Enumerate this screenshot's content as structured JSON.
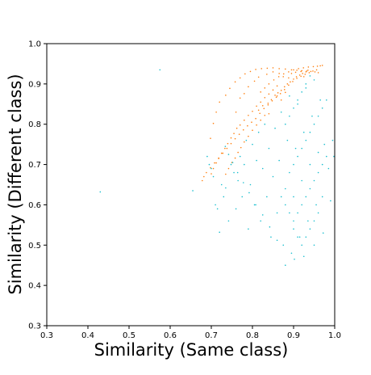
{
  "chart_data": {
    "type": "scatter",
    "xlabel": "Similarity (Same class)",
    "ylabel": "Similarity (Different class)",
    "xlim": [
      0.3,
      1.0
    ],
    "ylim": [
      0.3,
      1.0
    ],
    "x_ticks": [
      "0.3",
      "0.4",
      "0.5",
      "0.6",
      "0.7",
      "0.8",
      "0.9",
      "1.0"
    ],
    "y_ticks": [
      "0.3",
      "0.4",
      "0.5",
      "0.6",
      "0.7",
      "0.8",
      "0.9",
      "1.0"
    ],
    "grid": false,
    "legend": "none",
    "series": [
      {
        "color": "#ff7f0e",
        "points": [
          [
            0.815,
            0.835
          ],
          [
            0.825,
            0.846
          ],
          [
            0.838,
            0.852
          ],
          [
            0.846,
            0.861
          ],
          [
            0.855,
            0.872
          ],
          [
            0.862,
            0.878
          ],
          [
            0.87,
            0.884
          ],
          [
            0.878,
            0.893
          ],
          [
            0.885,
            0.9
          ],
          [
            0.892,
            0.905
          ],
          [
            0.9,
            0.912
          ],
          [
            0.907,
            0.918
          ],
          [
            0.915,
            0.922
          ],
          [
            0.922,
            0.926
          ],
          [
            0.93,
            0.93
          ],
          [
            0.935,
            0.934
          ],
          [
            0.86,
            0.87
          ],
          [
            0.87,
            0.86
          ],
          [
            0.88,
            0.879
          ],
          [
            0.84,
            0.826
          ],
          [
            0.83,
            0.822
          ],
          [
            0.82,
            0.81
          ],
          [
            0.81,
            0.798
          ],
          [
            0.8,
            0.785
          ],
          [
            0.79,
            0.77
          ],
          [
            0.78,
            0.756
          ],
          [
            0.772,
            0.742
          ],
          [
            0.765,
            0.73
          ],
          [
            0.758,
            0.716
          ],
          [
            0.75,
            0.705
          ],
          [
            0.742,
            0.69
          ],
          [
            0.735,
            0.676
          ],
          [
            0.76,
            0.83
          ],
          [
            0.77,
            0.865
          ],
          [
            0.78,
            0.876
          ],
          [
            0.79,
            0.893
          ],
          [
            0.805,
            0.907
          ],
          [
            0.815,
            0.917
          ],
          [
            0.835,
            0.924
          ],
          [
            0.85,
            0.93
          ],
          [
            0.865,
            0.926
          ],
          [
            0.875,
            0.918
          ],
          [
            0.888,
            0.915
          ],
          [
            0.895,
            0.926
          ],
          [
            0.905,
            0.929
          ],
          [
            0.918,
            0.931
          ],
          [
            0.925,
            0.918
          ],
          [
            0.86,
            0.895
          ],
          [
            0.85,
            0.885
          ],
          [
            0.84,
            0.875
          ],
          [
            0.83,
            0.866
          ],
          [
            0.82,
            0.855
          ],
          [
            0.81,
            0.845
          ],
          [
            0.8,
            0.832
          ],
          [
            0.79,
            0.822
          ],
          [
            0.78,
            0.81
          ],
          [
            0.77,
            0.798
          ],
          [
            0.762,
            0.79
          ],
          [
            0.755,
            0.777
          ],
          [
            0.748,
            0.766
          ],
          [
            0.74,
            0.752
          ],
          [
            0.733,
            0.74
          ],
          [
            0.725,
            0.728
          ],
          [
            0.718,
            0.715
          ],
          [
            0.712,
            0.704
          ],
          [
            0.705,
            0.69
          ],
          [
            0.7,
            0.677
          ],
          [
            0.698,
            0.765
          ],
          [
            0.705,
            0.802
          ],
          [
            0.712,
            0.83
          ],
          [
            0.72,
            0.855
          ],
          [
            0.735,
            0.872
          ],
          [
            0.745,
            0.889
          ],
          [
            0.758,
            0.905
          ],
          [
            0.77,
            0.915
          ],
          [
            0.782,
            0.925
          ],
          [
            0.795,
            0.931
          ],
          [
            0.808,
            0.936
          ],
          [
            0.822,
            0.938
          ],
          [
            0.836,
            0.939
          ],
          [
            0.85,
            0.94
          ],
          [
            0.865,
            0.938
          ],
          [
            0.88,
            0.937
          ],
          [
            0.895,
            0.935
          ],
          [
            0.908,
            0.934
          ],
          [
            0.92,
            0.933
          ],
          [
            0.932,
            0.932
          ],
          [
            0.942,
            0.931
          ],
          [
            0.952,
            0.93
          ],
          [
            0.96,
            0.928
          ],
          [
            0.808,
            0.814
          ],
          [
            0.818,
            0.827
          ],
          [
            0.828,
            0.839
          ],
          [
            0.838,
            0.848
          ],
          [
            0.848,
            0.858
          ],
          [
            0.858,
            0.867
          ],
          [
            0.868,
            0.876
          ],
          [
            0.878,
            0.886
          ],
          [
            0.888,
            0.897
          ],
          [
            0.898,
            0.906
          ],
          [
            0.908,
            0.914
          ],
          [
            0.918,
            0.919
          ],
          [
            0.928,
            0.924
          ],
          [
            0.938,
            0.928
          ],
          [
            0.947,
            0.932
          ],
          [
            0.956,
            0.935
          ],
          [
            0.798,
            0.805
          ],
          [
            0.788,
            0.796
          ],
          [
            0.778,
            0.786
          ],
          [
            0.768,
            0.775
          ],
          [
            0.758,
            0.764
          ],
          [
            0.748,
            0.752
          ],
          [
            0.738,
            0.74
          ],
          [
            0.728,
            0.728
          ],
          [
            0.718,
            0.716
          ],
          [
            0.708,
            0.704
          ],
          [
            0.698,
            0.692
          ],
          [
            0.688,
            0.68
          ],
          [
            0.682,
            0.67
          ],
          [
            0.678,
            0.66
          ],
          [
            0.82,
            0.88
          ],
          [
            0.83,
            0.89
          ],
          [
            0.84,
            0.9
          ],
          [
            0.852,
            0.91
          ],
          [
            0.864,
            0.918
          ],
          [
            0.876,
            0.925
          ],
          [
            0.888,
            0.93
          ],
          [
            0.9,
            0.935
          ],
          [
            0.912,
            0.938
          ],
          [
            0.924,
            0.94
          ],
          [
            0.936,
            0.942
          ],
          [
            0.948,
            0.943
          ],
          [
            0.958,
            0.944
          ],
          [
            0.965,
            0.945
          ],
          [
            0.97,
            0.946
          ]
        ]
      },
      {
        "color": "#17becf",
        "points": [
          [
            0.43,
            0.632
          ],
          [
            0.575,
            0.935
          ],
          [
            0.655,
            0.635
          ],
          [
            0.69,
            0.72
          ],
          [
            0.695,
            0.7
          ],
          [
            0.7,
            0.69
          ],
          [
            0.705,
            0.67
          ],
          [
            0.71,
            0.6
          ],
          [
            0.715,
            0.59
          ],
          [
            0.72,
            0.532
          ],
          [
            0.725,
            0.65
          ],
          [
            0.73,
            0.62
          ],
          [
            0.735,
            0.642
          ],
          [
            0.742,
            0.56
          ],
          [
            0.748,
            0.7
          ],
          [
            0.755,
            0.68
          ],
          [
            0.76,
            0.59
          ],
          [
            0.765,
            0.66
          ],
          [
            0.77,
            0.72
          ],
          [
            0.775,
            0.62
          ],
          [
            0.78,
            0.7
          ],
          [
            0.785,
            0.76
          ],
          [
            0.79,
            0.54
          ],
          [
            0.795,
            0.65
          ],
          [
            0.8,
            0.75
          ],
          [
            0.805,
            0.6
          ],
          [
            0.81,
            0.71
          ],
          [
            0.815,
            0.78
          ],
          [
            0.82,
            0.56
          ],
          [
            0.825,
            0.69
          ],
          [
            0.83,
            0.8
          ],
          [
            0.835,
            0.62
          ],
          [
            0.84,
            0.74
          ],
          [
            0.845,
            0.52
          ],
          [
            0.85,
            0.67
          ],
          [
            0.855,
            0.79
          ],
          [
            0.86,
            0.58
          ],
          [
            0.865,
            0.71
          ],
          [
            0.87,
            0.83
          ],
          [
            0.875,
            0.5
          ],
          [
            0.88,
            0.64
          ],
          [
            0.885,
            0.76
          ],
          [
            0.89,
            0.87
          ],
          [
            0.895,
            0.48
          ],
          [
            0.9,
            0.62
          ],
          [
            0.905,
            0.74
          ],
          [
            0.91,
            0.85
          ],
          [
            0.915,
            0.52
          ],
          [
            0.92,
            0.66
          ],
          [
            0.925,
            0.78
          ],
          [
            0.93,
            0.89
          ],
          [
            0.935,
            0.56
          ],
          [
            0.94,
            0.7
          ],
          [
            0.945,
            0.82
          ],
          [
            0.95,
            0.91
          ],
          [
            0.955,
            0.6
          ],
          [
            0.96,
            0.73
          ],
          [
            0.965,
            0.86
          ],
          [
            0.97,
            0.62
          ],
          [
            0.975,
            0.75
          ],
          [
            0.98,
            0.86
          ],
          [
            0.985,
            0.69
          ],
          [
            0.99,
            0.61
          ],
          [
            0.995,
            0.76
          ],
          [
            0.998,
            0.72
          ],
          [
            0.88,
            0.45
          ],
          [
            0.902,
            0.465
          ],
          [
            0.925,
            0.472
          ],
          [
            0.95,
            0.5
          ],
          [
            0.972,
            0.53
          ],
          [
            0.86,
            0.512
          ],
          [
            0.842,
            0.545
          ],
          [
            0.825,
            0.575
          ],
          [
            0.808,
            0.6
          ],
          [
            0.792,
            0.63
          ],
          [
            0.778,
            0.655
          ],
          [
            0.764,
            0.68
          ],
          [
            0.752,
            0.705
          ],
          [
            0.742,
            0.725
          ],
          [
            0.734,
            0.745
          ],
          [
            0.9,
            0.56
          ],
          [
            0.91,
            0.58
          ],
          [
            0.92,
            0.6
          ],
          [
            0.93,
            0.62
          ],
          [
            0.94,
            0.64
          ],
          [
            0.95,
            0.66
          ],
          [
            0.96,
            0.68
          ],
          [
            0.97,
            0.7
          ],
          [
            0.98,
            0.72
          ],
          [
            0.89,
            0.68
          ],
          [
            0.9,
            0.7
          ],
          [
            0.91,
            0.72
          ],
          [
            0.92,
            0.74
          ],
          [
            0.93,
            0.76
          ],
          [
            0.94,
            0.78
          ],
          [
            0.95,
            0.8
          ],
          [
            0.96,
            0.82
          ],
          [
            0.97,
            0.84
          ],
          [
            0.88,
            0.8
          ],
          [
            0.89,
            0.82
          ],
          [
            0.9,
            0.84
          ],
          [
            0.91,
            0.86
          ],
          [
            0.92,
            0.88
          ],
          [
            0.93,
            0.9
          ],
          [
            0.94,
            0.92
          ],
          [
            0.87,
            0.62
          ],
          [
            0.88,
            0.6
          ],
          [
            0.89,
            0.58
          ],
          [
            0.9,
            0.54
          ],
          [
            0.91,
            0.52
          ],
          [
            0.92,
            0.5
          ],
          [
            0.93,
            0.52
          ],
          [
            0.94,
            0.54
          ],
          [
            0.95,
            0.56
          ],
          [
            0.96,
            0.58
          ]
        ]
      }
    ]
  }
}
